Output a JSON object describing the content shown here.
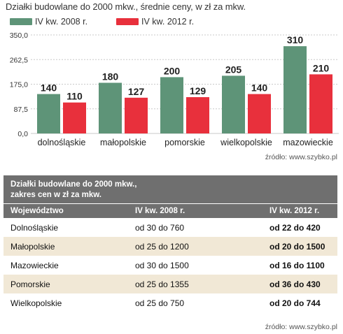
{
  "chart_data": {
    "type": "bar",
    "title": "Działki budowlane do 2000 mkw., średnie ceny, w zł za mkw.",
    "categories": [
      "dolnośląskie",
      "małopolskie",
      "pomorskie",
      "wielkopolskie",
      "mazowieckie"
    ],
    "series": [
      {
        "name": "IV kw. 2008 r.",
        "values": [
          140,
          180,
          200,
          205,
          310
        ],
        "color": "#5e9478"
      },
      {
        "name": "IV kw. 2012 r.",
        "values": [
          110,
          127,
          129,
          140,
          210
        ],
        "color": "#e8303c"
      }
    ],
    "yticks": [
      "350,0",
      "262,5",
      "175,0",
      "87,5",
      "0,0"
    ],
    "ylim": [
      0,
      350
    ],
    "grid": true,
    "source": "źródło: www.szybko.pl"
  },
  "table": {
    "title": "Działki budowlane do 2000 mkw.,",
    "subtitle": "zakres cen w zł za mkw.",
    "headers": [
      "Województwo",
      "IV kw. 2008 r.",
      "IV kw. 2012 r."
    ],
    "rows": [
      [
        "Dolnośląskie",
        "od 30 do 760",
        "od 22 do 420"
      ],
      [
        "Małopolskie",
        "od 25 do 1200",
        "od 20 do 1500"
      ],
      [
        "Mazowieckie",
        "od 30 do 1500",
        "od 16 do 1100"
      ],
      [
        "Pomorskie",
        "od 25 do 1355",
        "od 36 do 430"
      ],
      [
        "Wielkopolskie",
        "od 25 do 750",
        "od 20 do 744"
      ]
    ],
    "source": "źródło: www.szybko.pl"
  }
}
